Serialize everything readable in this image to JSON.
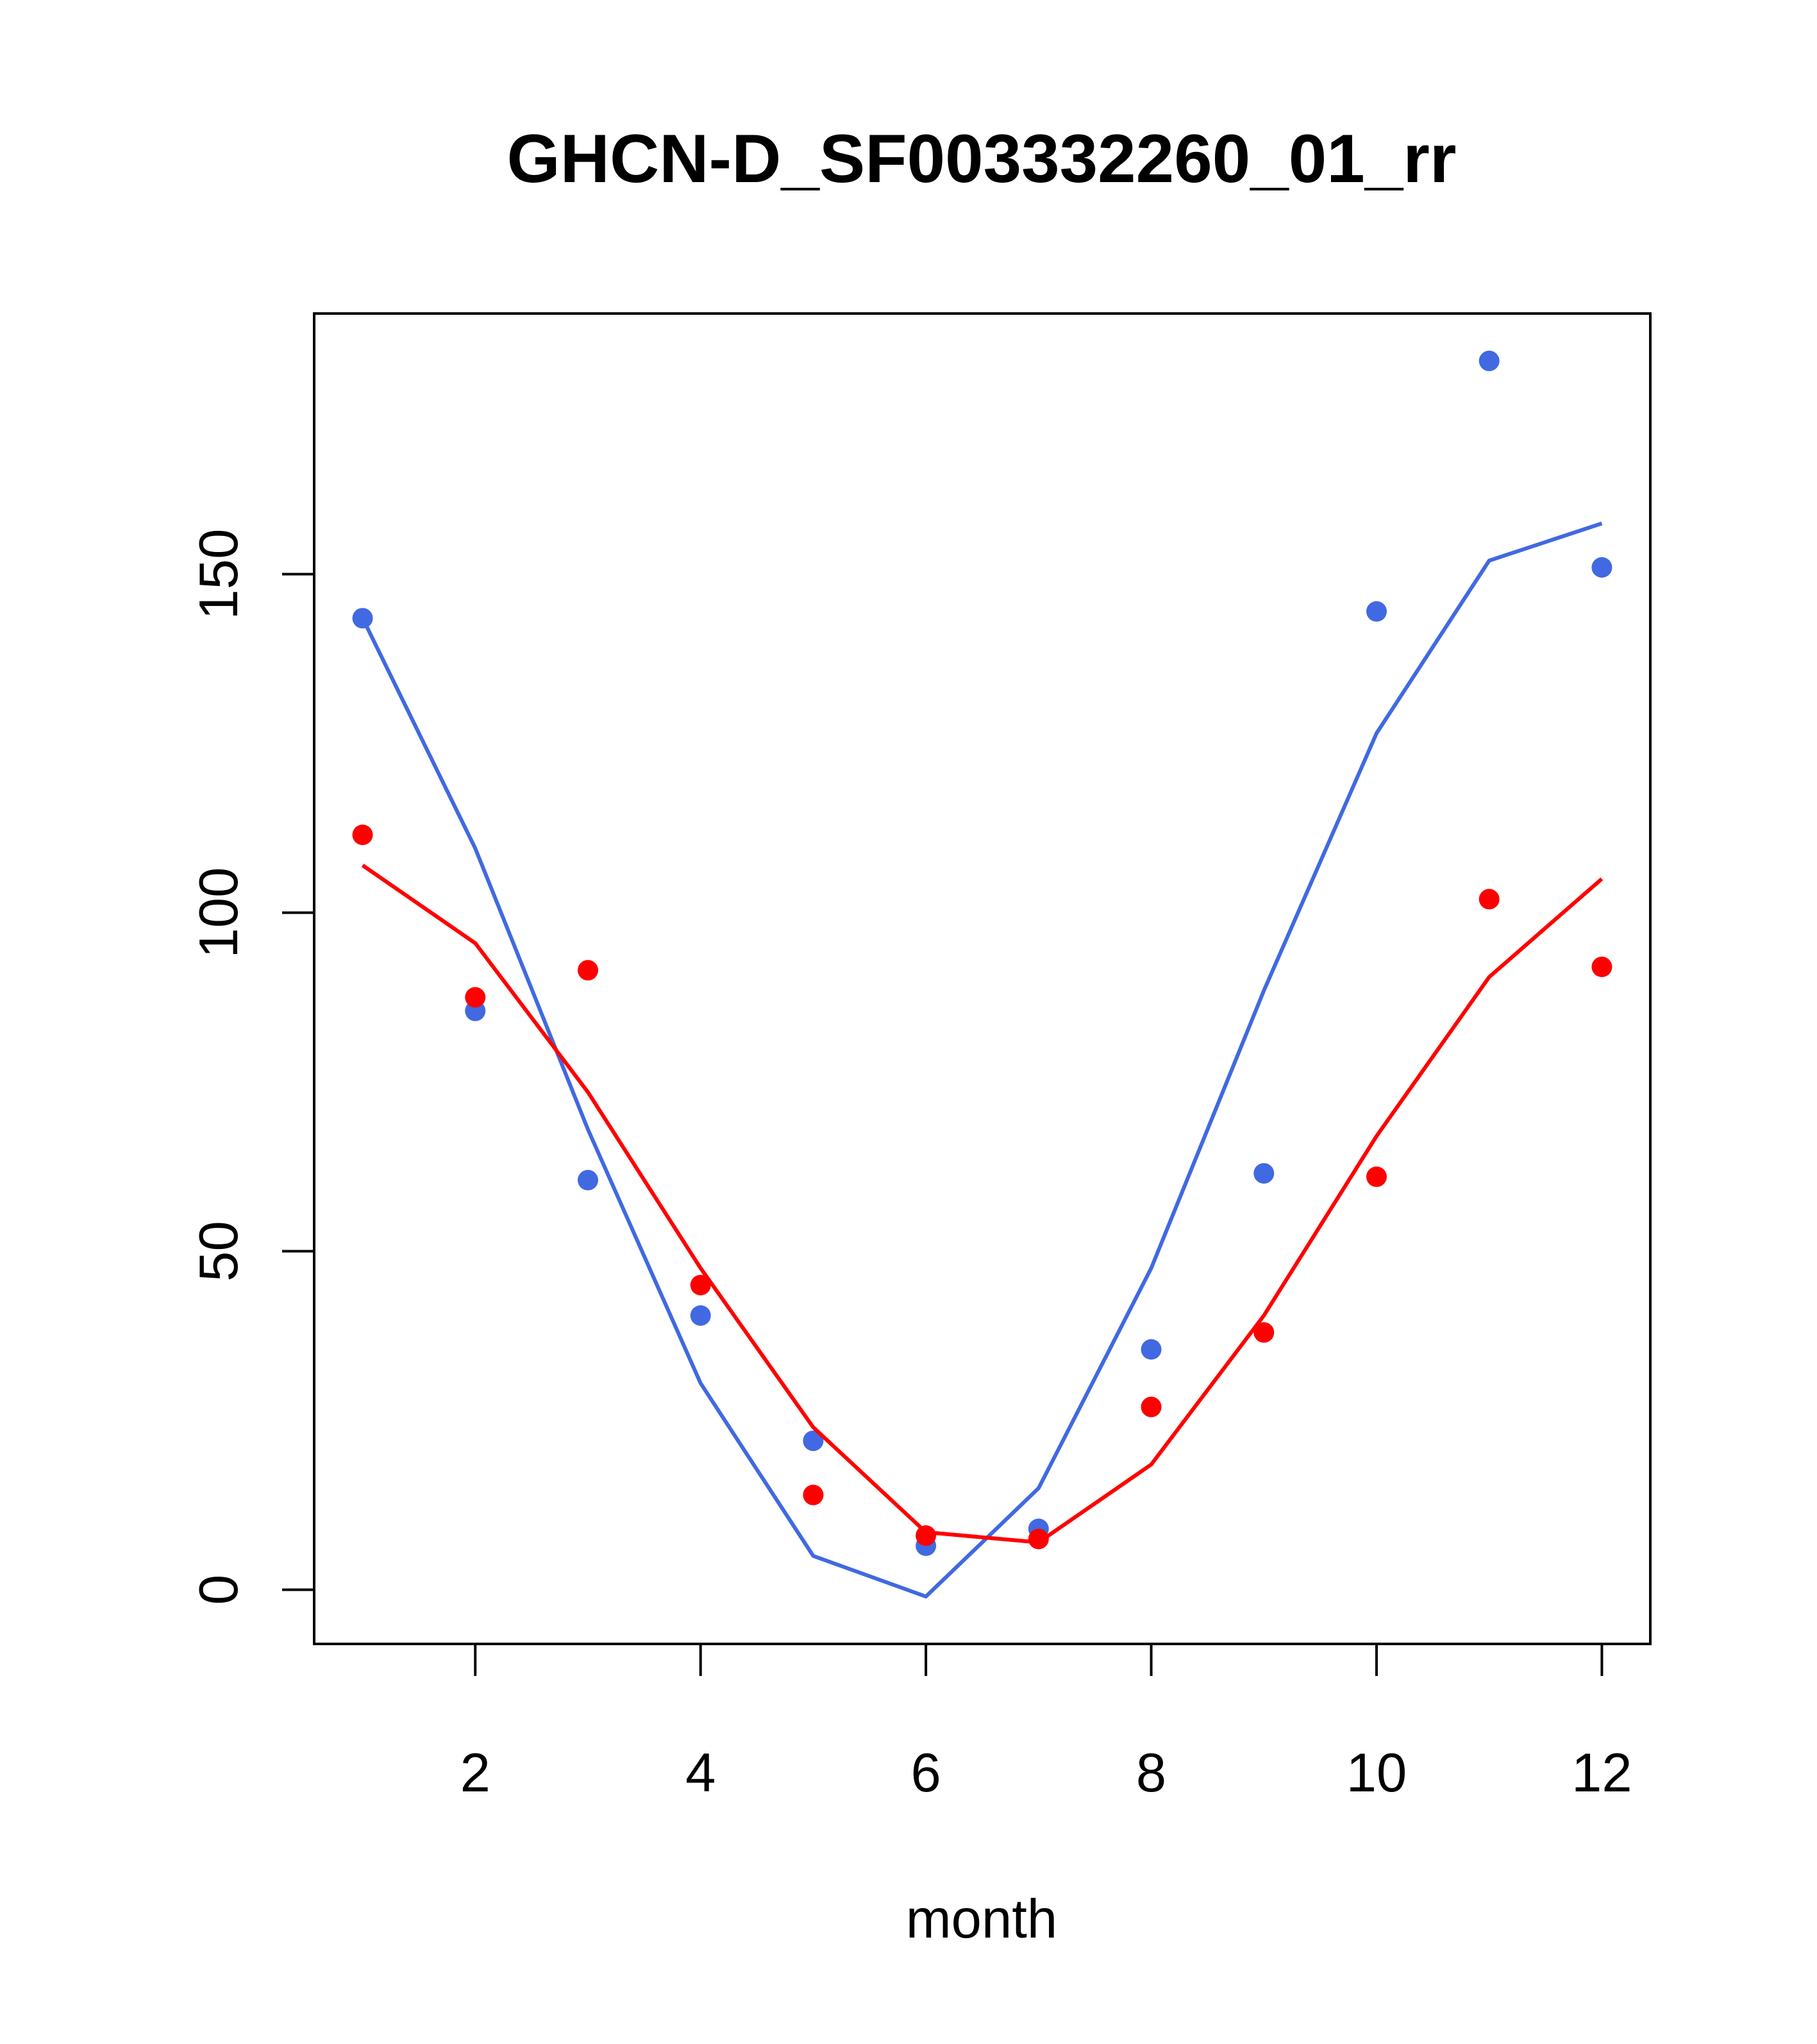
{
  "chart_data": {
    "type": "line",
    "title": "GHCN-D_SF003332260_01_rr",
    "xlabel": "month",
    "ylabel": "",
    "xlim": [
      0.57,
      12.43
    ],
    "ylim": [
      -8,
      188.5
    ],
    "xticks": [
      2,
      4,
      6,
      8,
      10,
      12
    ],
    "yticks": [
      0,
      50,
      100,
      150
    ],
    "grid": false,
    "legend": "none",
    "x": [
      1,
      2,
      3,
      4,
      5,
      6,
      7,
      8,
      9,
      10,
      11,
      12
    ],
    "series": [
      {
        "color": "#4169E1",
        "points": [
          143.5,
          85.5,
          60.5,
          40.5,
          22,
          6.5,
          9,
          35.5,
          61.5,
          144.5,
          181.5,
          151
        ],
        "line": [
          143.5,
          109.5,
          68,
          30.5,
          5,
          -1,
          15,
          47.5,
          88.5,
          126.5,
          152,
          157.5
        ]
      },
      {
        "color": "#FF0000",
        "points": [
          111.5,
          87.5,
          91.5,
          45,
          14,
          8,
          7.5,
          27,
          38,
          61,
          102,
          92
        ],
        "line": [
          107,
          95.5,
          73.5,
          47.5,
          24,
          8.5,
          7,
          18.5,
          40.5,
          67,
          90.5,
          105
        ]
      }
    ]
  }
}
